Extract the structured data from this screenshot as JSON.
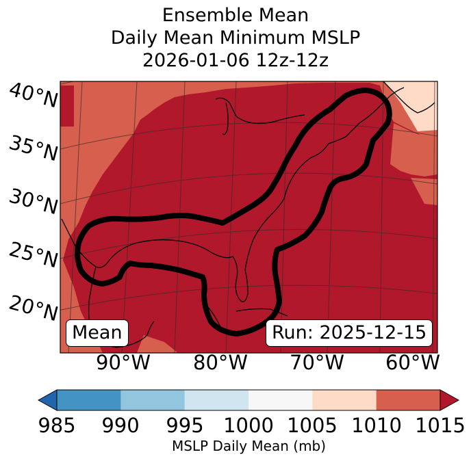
{
  "title": {
    "line1": "Ensemble Mean",
    "line2": "Daily Mean Minimum MSLP",
    "line3": "2026-01-06 12z-12z"
  },
  "map": {
    "latitude_labels": [
      "40°N",
      "35°N",
      "30°N",
      "25°N",
      "20°N"
    ],
    "longitude_labels": [
      "90°W",
      "80°W",
      "70°W",
      "60°W"
    ],
    "mean_box_label": "Mean",
    "run_box_label": "Run: 2025-12-15",
    "contour_description_colors": {
      "outline": "#000000"
    }
  },
  "colorbar": {
    "label": "MSLP Daily Mean (mb)",
    "ticks": [
      "985",
      "990",
      "995",
      "1000",
      "1005",
      "1010",
      "1015"
    ],
    "colors": [
      "#2166ac",
      "#4393c3",
      "#92c5de",
      "#d1e5f0",
      "#f7f7f7",
      "#fddbc7",
      "#d6604d",
      "#b2182b"
    ],
    "extend": "both"
  },
  "colors": {
    "deep_low": "#b2182b",
    "mid": "#d6604d",
    "light": "#fddbc7",
    "background": "#ffffff"
  }
}
